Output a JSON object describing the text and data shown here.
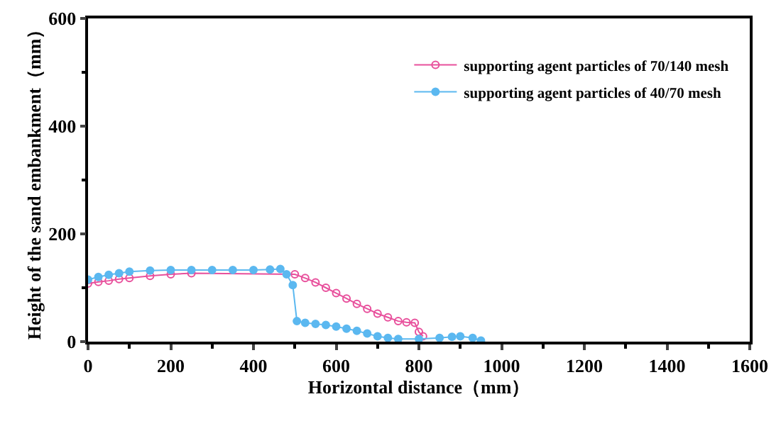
{
  "chart_data": {
    "type": "line",
    "xlabel": "Horizontal distance（mm）",
    "ylabel": "Height of the sand embankment（mm）",
    "xlim": [
      0,
      1600
    ],
    "xticks": [
      0,
      200,
      400,
      600,
      800,
      1000,
      1200,
      1400,
      1600
    ],
    "ylim": [
      0,
      600
    ],
    "yticks": [
      0,
      200,
      400,
      600
    ],
    "legend": "top right",
    "marker": "circle",
    "series": [
      {
        "name": "supporting agent particles of 70/140 mesh",
        "color": "#e8509c",
        "x": [
          0,
          25,
          50,
          75,
          100,
          150,
          200,
          250,
          300,
          350,
          400,
          440,
          470,
          500,
          525,
          550,
          575,
          600,
          625,
          650,
          675,
          700,
          725,
          750,
          770,
          790,
          800,
          810
        ],
        "values": [
          108,
          111,
          113,
          116,
          118,
          122,
          125,
          127,
          null,
          null,
          null,
          null,
          null,
          125,
          118,
          110,
          100,
          90,
          80,
          70,
          61,
          52,
          45,
          38,
          36,
          35,
          18,
          10
        ]
      },
      {
        "name": "supporting agent particles of 40/70 mesh",
        "color": "#5bb8f0",
        "x": [
          0,
          25,
          50,
          75,
          100,
          150,
          200,
          250,
          300,
          350,
          400,
          440,
          465,
          480,
          495,
          505,
          525,
          550,
          575,
          600,
          625,
          650,
          675,
          700,
          725,
          750,
          800,
          850,
          880,
          900,
          930,
          950
        ],
        "values": [
          115,
          120,
          124,
          127,
          130,
          132,
          133,
          133,
          133,
          133,
          133,
          134,
          135,
          125,
          105,
          38,
          35,
          33,
          31,
          28,
          24,
          20,
          15,
          10,
          7,
          5,
          5,
          7,
          9,
          10,
          7,
          2
        ]
      }
    ]
  }
}
